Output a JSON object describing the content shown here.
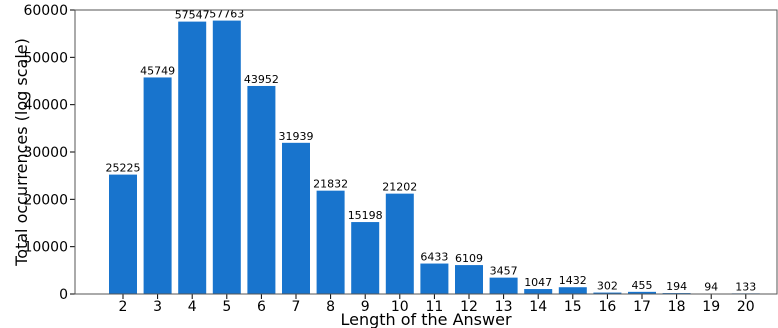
{
  "chart_data": {
    "type": "bar",
    "title": "",
    "xlabel": "Length of the Answer",
    "ylabel": "Total occurrences (log scale)",
    "categories": [
      "2",
      "3",
      "4",
      "5",
      "6",
      "7",
      "8",
      "9",
      "10",
      "11",
      "12",
      "13",
      "14",
      "15",
      "16",
      "17",
      "18",
      "19",
      "20"
    ],
    "values": [
      25225,
      45749,
      57547,
      57763,
      43952,
      31939,
      21832,
      15198,
      21202,
      6433,
      6109,
      3457,
      1047,
      1432,
      302,
      455,
      194,
      94,
      133
    ],
    "data_labels": [
      "25225",
      "45749",
      "57547",
      "57763",
      "43952",
      "31939",
      "21832",
      "15198",
      "21202",
      "6433",
      "6109",
      "3457",
      "1047",
      "1432",
      "302",
      "455",
      "194",
      "94",
      "133"
    ],
    "yticks": [
      0,
      10000,
      20000,
      30000,
      40000,
      50000,
      60000
    ],
    "ytick_labels": [
      "0",
      "10000",
      "20000",
      "30000",
      "40000",
      "50000",
      "60000"
    ],
    "ylim": [
      0,
      60000
    ],
    "grid": false,
    "legend": "none",
    "bar_color": "#1874cd"
  }
}
